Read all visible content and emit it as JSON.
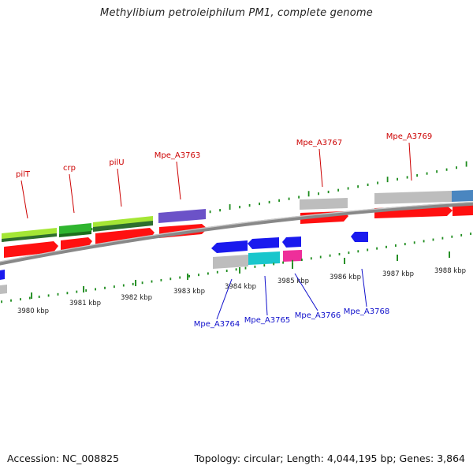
{
  "title": "Methylibium petroleiphilum PM1, complete genome",
  "footer": {
    "accession": "Accession: NC_008825",
    "summary": "Topology: circular; Length: 4,044,195 bp; Genes: 3,864"
  },
  "colors": {
    "backbone": "#8a8a8a",
    "tick": "#1e8c1e",
    "forward_label": "#cc0000",
    "reverse_label": "#1010cc",
    "cds": "#ff1010",
    "reverse_cds": "#1a1aee"
  },
  "scale_labels": [
    "3980 kbp",
    "3981 kbp",
    "3982 kbp",
    "3983 kbp",
    "3984 kbp",
    "3985 kbp",
    "3986 kbp",
    "3987 kbp",
    "3988 kbp"
  ],
  "forward_genes": [
    "pilT",
    "crp",
    "pilU",
    "Mpe_A3763",
    "Mpe_A3767",
    "Mpe_A3769"
  ],
  "reverse_genes": [
    "Mpe_A3764",
    "Mpe_A3765",
    "Mpe_A3766",
    "Mpe_A3768"
  ]
}
